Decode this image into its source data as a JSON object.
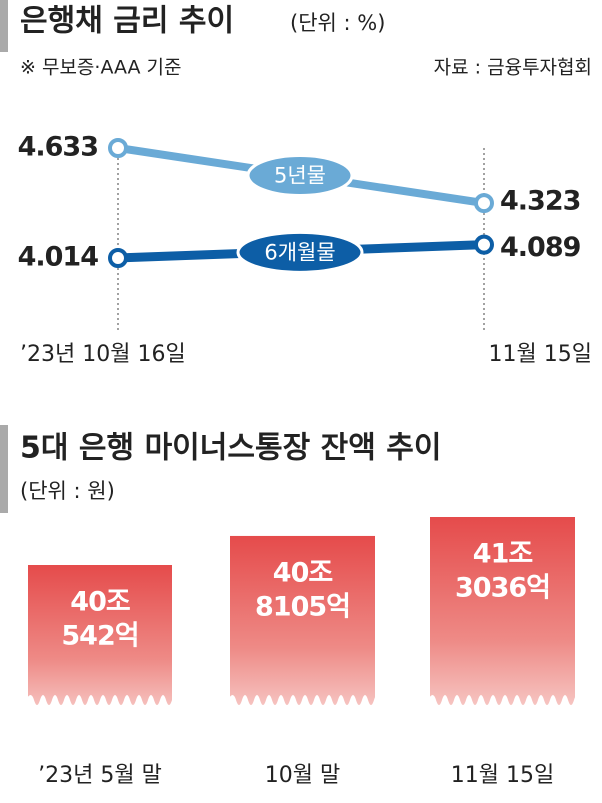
{
  "chart_data": [
    {
      "type": "line",
      "title": "은행채 금리 추이",
      "subtitle": "(단위 : %)",
      "note": "※ 무보증·AAA 기준",
      "source": "자료 : 금융투자협회",
      "categories": [
        "’23년 10월 16일",
        "11월 15일"
      ],
      "series": [
        {
          "name": "5년물",
          "color": "#6aaad6",
          "values": [
            4.633,
            4.323
          ]
        },
        {
          "name": "6개월물",
          "color": "#0d5ea6",
          "values": [
            4.014,
            4.089
          ]
        }
      ]
    },
    {
      "type": "bar",
      "title": "5대 은행 마이너스통장 잔액 추이",
      "subtitle": "(단위 : 원)",
      "categories": [
        "’23년 5월 말",
        "10월 말",
        "11월 15일"
      ],
      "values": [
        40054200000000,
        40810500000000,
        41303600000000
      ],
      "value_labels": [
        [
          "40조",
          "542억"
        ],
        [
          "40조",
          "8105억"
        ],
        [
          "41조",
          "3036억"
        ]
      ],
      "color": "#e54b4b"
    }
  ]
}
